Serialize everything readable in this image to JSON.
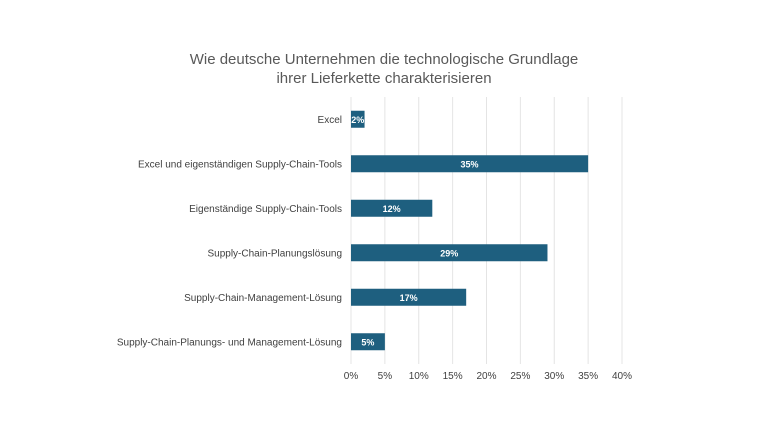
{
  "chart_data": {
    "type": "bar",
    "orientation": "horizontal",
    "title_lines": [
      "Wie deutsche Unternehmen die technologische Grundlage",
      "ihrer Lieferkette charakterisieren"
    ],
    "categories": [
      "Excel",
      "Excel und eigenständigen Supply-Chain-Tools",
      "Eigenständige Supply-Chain-Tools",
      "Supply-Chain-Planungslösung",
      "Supply-Chain-Management-Lösung",
      "Supply-Chain-Planungs- und Management-Lösung"
    ],
    "values": [
      2,
      35,
      12,
      29,
      17,
      5
    ],
    "data_labels": [
      "2%",
      "35%",
      "12%",
      "29%",
      "17%",
      "5%"
    ],
    "xlim": [
      0,
      40
    ],
    "xticks": [
      0,
      5,
      10,
      15,
      20,
      25,
      30,
      35,
      40
    ],
    "xtick_labels": [
      "0%",
      "5%",
      "10%",
      "15%",
      "20%",
      "25%",
      "30%",
      "35%",
      "40%"
    ],
    "grid": true,
    "legend": "none",
    "bar_color": "#1e5f7f",
    "label_color": "#ffffff",
    "text_color": "#404040",
    "grid_color": "#e4e4e4"
  }
}
